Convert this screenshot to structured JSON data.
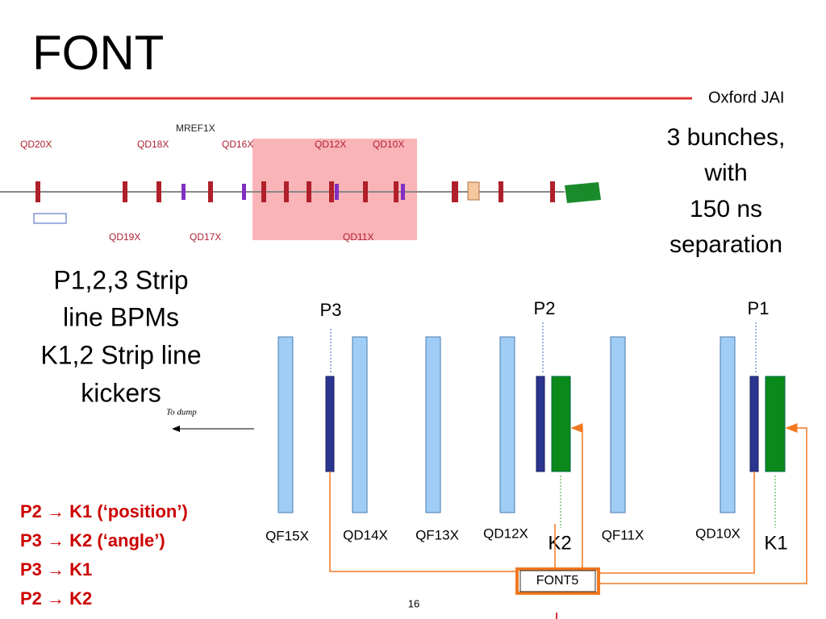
{
  "header": {
    "title": "FONT",
    "affiliation": "Oxford JAI"
  },
  "beamline": {
    "labels": [
      "QD20X",
      "QD18X",
      "MREF1X",
      "QD16X",
      "QD12X",
      "QD10X",
      "QD19X",
      "QD17X",
      "QD11X"
    ]
  },
  "bunch_note": {
    "lines": [
      "3 bunches,",
      "with",
      "150 ns",
      "separation"
    ]
  },
  "device_note": {
    "lines": [
      "P1,2,3 Strip",
      "line BPMs",
      "K1,2 Strip line",
      "kickers"
    ]
  },
  "diagram": {
    "to_dump": "To dump",
    "bpms": [
      "P3",
      "P2",
      "P1"
    ],
    "magnets": [
      "QF15X",
      "QD14X",
      "QF13X",
      "QD12X",
      "QF11X",
      "QD10X"
    ],
    "kickers": [
      "K2",
      "K1"
    ],
    "processor": "FONT5"
  },
  "feedback": {
    "lines": [
      "P2 → K1 (‘position’)",
      "P3 → K2 (‘angle’)",
      "P3 → K1",
      "P2 → K2"
    ]
  },
  "page_number": "16"
}
